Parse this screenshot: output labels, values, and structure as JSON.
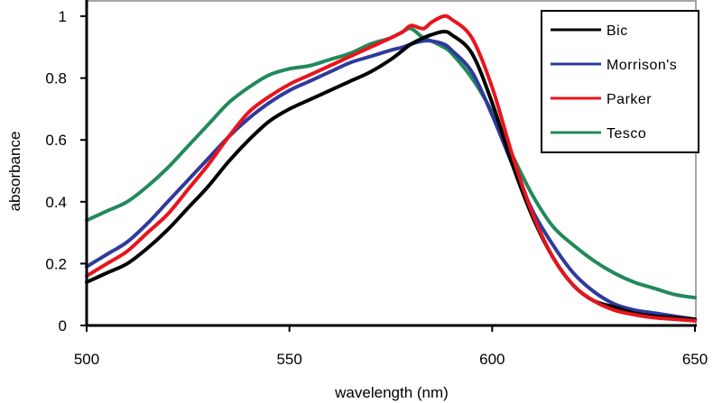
{
  "chart_data": {
    "type": "line",
    "title": "",
    "xlabel": "wavelength (nm)",
    "ylabel": "absorbance",
    "xlim": [
      500,
      650
    ],
    "ylim": [
      0,
      1
    ],
    "xticks": [
      500,
      550,
      600,
      650
    ],
    "yticks": [
      0,
      0.2,
      0.4,
      0.6,
      0.8,
      1
    ],
    "xtick_labels": [
      "500",
      "550",
      "600",
      "650"
    ],
    "ytick_labels": [
      "0",
      "0.2",
      "0.4",
      "0.6",
      "0.8",
      "1"
    ],
    "grid": false,
    "legend_position": "top-right",
    "x": [
      500,
      505,
      510,
      515,
      520,
      525,
      530,
      535,
      540,
      545,
      550,
      555,
      560,
      565,
      570,
      575,
      578,
      580,
      583,
      585,
      588,
      590,
      595,
      600,
      605,
      610,
      615,
      620,
      625,
      630,
      635,
      640,
      645,
      650
    ],
    "series": [
      {
        "name": "Bic",
        "color": "#000000",
        "values": [
          0.14,
          0.17,
          0.2,
          0.25,
          0.31,
          0.38,
          0.45,
          0.53,
          0.6,
          0.66,
          0.7,
          0.73,
          0.76,
          0.79,
          0.82,
          0.86,
          0.89,
          0.91,
          0.93,
          0.94,
          0.95,
          0.94,
          0.88,
          0.72,
          0.52,
          0.35,
          0.22,
          0.13,
          0.08,
          0.06,
          0.04,
          0.03,
          0.025,
          0.02
        ]
      },
      {
        "name": "Morrison's",
        "color": "#2E3A9C",
        "values": [
          0.19,
          0.23,
          0.27,
          0.33,
          0.4,
          0.47,
          0.54,
          0.61,
          0.67,
          0.72,
          0.76,
          0.79,
          0.82,
          0.85,
          0.87,
          0.89,
          0.9,
          0.91,
          0.92,
          0.92,
          0.91,
          0.89,
          0.82,
          0.68,
          0.52,
          0.37,
          0.26,
          0.17,
          0.11,
          0.07,
          0.05,
          0.04,
          0.03,
          0.02
        ]
      },
      {
        "name": "Parker",
        "color": "#E8141C",
        "values": [
          0.16,
          0.2,
          0.24,
          0.3,
          0.36,
          0.44,
          0.52,
          0.61,
          0.69,
          0.74,
          0.78,
          0.81,
          0.84,
          0.87,
          0.9,
          0.93,
          0.95,
          0.97,
          0.96,
          0.98,
          1.0,
          0.99,
          0.93,
          0.77,
          0.55,
          0.36,
          0.22,
          0.13,
          0.08,
          0.05,
          0.035,
          0.025,
          0.02,
          0.015
        ]
      },
      {
        "name": "Tesco",
        "color": "#21895A",
        "values": [
          0.34,
          0.37,
          0.4,
          0.45,
          0.51,
          0.58,
          0.65,
          0.72,
          0.77,
          0.81,
          0.83,
          0.84,
          0.86,
          0.88,
          0.91,
          0.93,
          0.95,
          0.96,
          0.93,
          0.92,
          0.9,
          0.88,
          0.8,
          0.69,
          0.55,
          0.42,
          0.32,
          0.26,
          0.21,
          0.17,
          0.14,
          0.12,
          0.1,
          0.09
        ]
      }
    ]
  }
}
